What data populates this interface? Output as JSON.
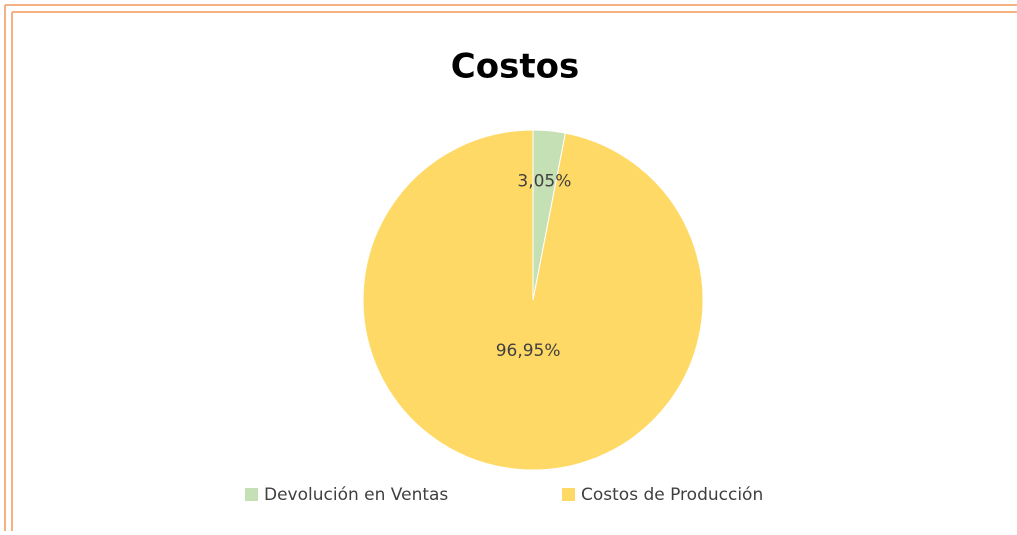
{
  "chart_data": {
    "type": "pie",
    "title": "Costos",
    "categories": [
      "Devolución en Ventas",
      "Costos de Producción"
    ],
    "values": [
      3.05,
      96.95
    ],
    "value_labels": [
      "3,05%",
      "96,95%"
    ],
    "colors": [
      "#c5e0b4",
      "#ffd966"
    ],
    "legend": "bottom"
  }
}
